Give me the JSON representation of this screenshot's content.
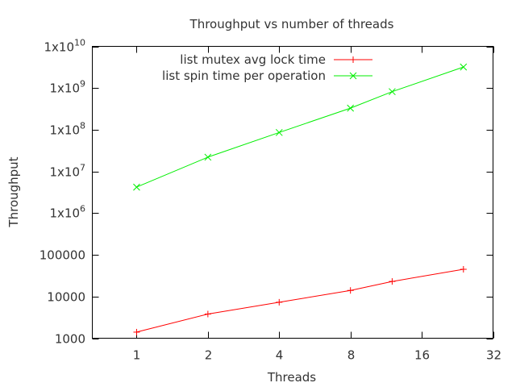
{
  "chart_data": {
    "type": "line",
    "title": "Throughput vs number of threads",
    "xlabel": "Threads",
    "ylabel": "Throughput",
    "x_scale": "log2",
    "y_scale": "log10",
    "xlim": [
      0.65,
      32
    ],
    "ylim": [
      1000,
      10000000000
    ],
    "x_ticks": [
      1,
      2,
      4,
      8,
      16,
      32
    ],
    "x_tick_labels": [
      "1",
      "2",
      "4",
      "8",
      "16",
      "32"
    ],
    "y_ticks": [
      1000,
      10000,
      100000,
      1000000,
      10000000,
      100000000,
      1000000000,
      10000000000
    ],
    "y_tick_labels": [
      {
        "text": "1000",
        "exp": ""
      },
      {
        "text": "10000",
        "exp": ""
      },
      {
        "text": "100000",
        "exp": ""
      },
      {
        "text": "1x10",
        "exp": "6"
      },
      {
        "text": "1x10",
        "exp": "7"
      },
      {
        "text": "1x10",
        "exp": "8"
      },
      {
        "text": "1x10",
        "exp": "9"
      },
      {
        "text": "1x10",
        "exp": "10"
      }
    ],
    "grid": false,
    "legend_position": "top-center",
    "series": [
      {
        "name": "list mutex avg lock time",
        "color": "#ff0000",
        "marker": "plus",
        "x": [
          1,
          2,
          4,
          8,
          12,
          24
        ],
        "y": [
          1400,
          3800,
          7300,
          14000,
          23000,
          45000
        ]
      },
      {
        "name": "list spin time per operation",
        "color": "#00ee00",
        "marker": "cross",
        "x": [
          1,
          2,
          4,
          8,
          12,
          24
        ],
        "y": [
          4200000,
          22000000,
          86000000,
          330000000,
          820000000,
          3200000000
        ]
      }
    ]
  }
}
